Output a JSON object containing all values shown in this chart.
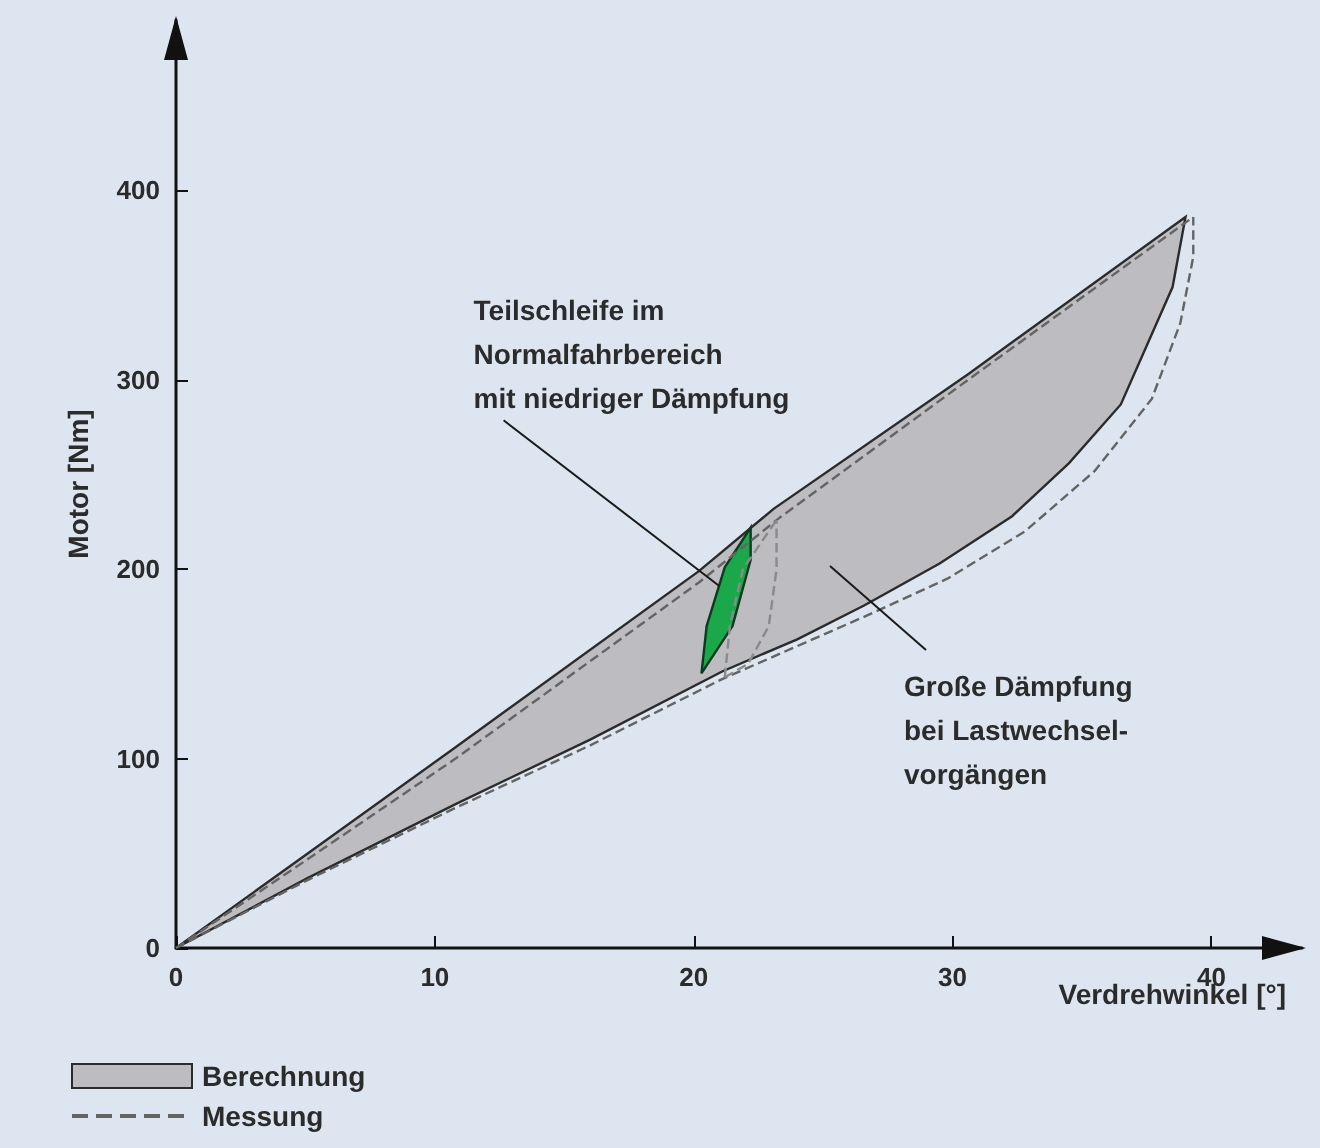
{
  "chart_data": {
    "type": "line",
    "xlabel": "Verdrehwinkel [°]",
    "ylabel": "Motor [Nm]",
    "xlim": [
      0,
      43.5
    ],
    "xticks": [
      0,
      10,
      20,
      30,
      40
    ],
    "ylim": [
      0,
      490
    ],
    "yticks": [
      0,
      100,
      200,
      300,
      400
    ],
    "grid": false,
    "legend": "bottom left",
    "marker": "none",
    "series": [
      {
        "name": "Berechnung",
        "type": "area",
        "color": "#bdbdc1",
        "line_style": "solid",
        "x": [
          0,
          5.1,
          10.8,
          20.2,
          23.1,
          30.6,
          39,
          38.5,
          37.5,
          36.5,
          34.5,
          32.3,
          29.5,
          26.6,
          24,
          21.1,
          16,
          10.8,
          5.1,
          0
        ],
        "values": [
          0,
          50,
          106,
          199,
          232,
          303,
          386,
          349,
          318,
          287,
          256,
          228,
          203,
          181,
          163,
          146,
          110,
          76,
          37,
          0
        ]
      },
      {
        "name": "Messung",
        "color": "#646464",
        "line_style": "dashed",
        "x": [
          0,
          5.1,
          10.8,
          20.2,
          23.3,
          30.6,
          39.3,
          null,
          0,
          5.1,
          10.8,
          16,
          21.1,
          26.6,
          29.8,
          32.8,
          35.5,
          37.7,
          38.8,
          39.3,
          39.3
        ],
        "values": [
          0,
          47,
          100,
          193,
          227,
          300,
          386,
          null,
          0,
          36,
          74,
          107,
          142,
          175,
          195,
          220,
          252,
          290,
          330,
          365,
          386
        ]
      },
      {
        "type": "area",
        "color": "#1aa84a",
        "line_style": "solid",
        "x": [
          20.3,
          20.5,
          21.2,
          22.2,
          22.2,
          21.5,
          20.3
        ],
        "values": [
          145,
          170,
          201,
          222,
          205,
          170,
          145
        ]
      },
      {
        "color": "#8a8a8a",
        "line_style": "dashed",
        "x": [
          21.2,
          21.4,
          21.9,
          23.2,
          null,
          21.2,
          22.1,
          22.9,
          23.2,
          23.2
        ],
        "values": [
          143,
          170,
          200,
          226,
          null,
          143,
          150,
          170,
          200,
          226
        ]
      }
    ],
    "annotations": [
      {
        "text": "Teilschleife im\nNormalfahrbereich\nmit niedriger Dämpfung",
        "x": 21.0,
        "y": 191
      },
      "Große Dämpfung\nbei Lastwechsel-\nvorgängen"
    ]
  }
}
